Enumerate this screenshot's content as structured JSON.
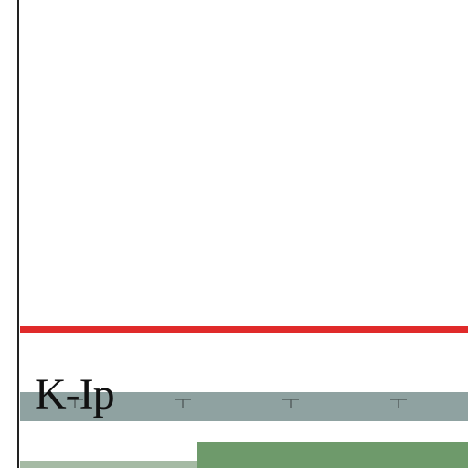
{
  "tracks": [
    {
      "id": "red-line",
      "color": "#e02a2a"
    },
    {
      "id": "k-ip",
      "label": "K-Ip",
      "color": "#8fa2a1",
      "tick_marker": "+",
      "tick_count": 4
    },
    {
      "id": "green-lower-left",
      "color": "#a5baa4"
    },
    {
      "id": "green-lower-right",
      "color": "#6e9a6b"
    }
  ]
}
